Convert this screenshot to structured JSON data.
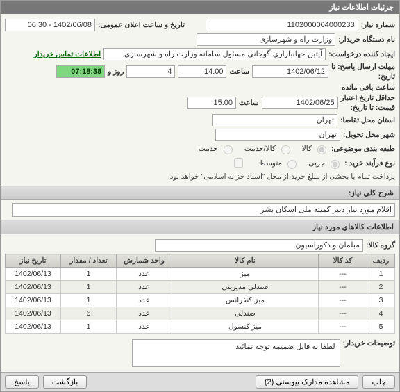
{
  "header": {
    "title": "جزئیات اطلاعات نیاز"
  },
  "info": {
    "need_no_label": "شماره نیاز:",
    "need_no": "1102000004000233",
    "announce_label": "تاریخ و ساعت اعلان عمومی:",
    "announce_value": "1402/06/08 - 06:30",
    "buyer_org_label": "نام دستگاه خریدار:",
    "buyer_org": "وزارت راه و شهرسازی",
    "creator_label": "ایجاد کننده درخواست:",
    "creator": "آیتین جهانبازاری گوجانی مسئول سامانه وزارت راه و شهرسازی",
    "contact_link": "اطلاعات تماس خریدار",
    "deadline_r_label1": "مهلت ارسال پاسخ: تا",
    "deadline_r_label2": "تاریخ:",
    "deadline_date": "1402/06/12",
    "time_label": "ساعت",
    "deadline_time": "14:00",
    "remaining_count": "4",
    "remaining_unit": "روز و",
    "remaining_time": "07:18:38",
    "remaining_suffix": "ساعت باقی مانده",
    "valid_price_label1": "حداقل تاریخ اعتبار",
    "valid_price_label2": "قیمت: تا تاریخ:",
    "valid_date": "1402/06/25",
    "valid_time": "15:00",
    "city_request_label": "استان محل تقاضا:",
    "city_request": "تهران",
    "city_delivery_label": "شهر محل تحویل:",
    "city_delivery": "تهران",
    "category_label": "طبقه بندی موضوعی:",
    "goods_label": "کالا",
    "service_label": "کالا/خدمت",
    "service_only_label": "خدمت",
    "process_label": "نوع فرآیند خرید :",
    "small_label": "جزیی",
    "medium_label": "متوسط",
    "payment_note": "پرداخت تمام یا بخشی از مبلغ خرید،از محل \"اسناد خزانه اسلامی\" خواهد بود."
  },
  "need_desc": {
    "label": "شرح کلي نیاز:",
    "value": "اقلام مورد نیاز دبیر کمیته ملی اسکان بشر"
  },
  "items_section": {
    "title": "اطلاعات کالاهاي مورد نیاز",
    "group_label": "گروه کالا:",
    "group_value": "مبلمان و دکوراسیون",
    "columns": {
      "row": "ردیف",
      "code": "کد کالا",
      "name": "نام کالا",
      "unit": "واحد شمارش",
      "qty": "تعداد / مقدار",
      "date": "تاریخ نیاز"
    },
    "rows": [
      {
        "n": "1",
        "code": "---",
        "name": "میز",
        "unit": "عدد",
        "qty": "1",
        "date": "1402/06/13"
      },
      {
        "n": "2",
        "code": "---",
        "name": "صندلی مدیریتی",
        "unit": "عدد",
        "qty": "1",
        "date": "1402/06/13"
      },
      {
        "n": "3",
        "code": "---",
        "name": "میز کنفرانس",
        "unit": "عدد",
        "qty": "1",
        "date": "1402/06/13"
      },
      {
        "n": "4",
        "code": "---",
        "name": "صندلی",
        "unit": "عدد",
        "qty": "6",
        "date": "1402/06/13"
      },
      {
        "n": "5",
        "code": "---",
        "name": "میز کنسول",
        "unit": "عدد",
        "qty": "1",
        "date": "1402/06/13"
      }
    ]
  },
  "buyer_notes": {
    "label": "توضیحات خریدار:",
    "value": "لطفا به فایل ضمیمه توجه نمائید"
  },
  "footer": {
    "print": "چاپ",
    "attachments": "مشاهده مدارک پیوستی (2)",
    "back": "بازگشت",
    "reply": "پاسخ"
  }
}
